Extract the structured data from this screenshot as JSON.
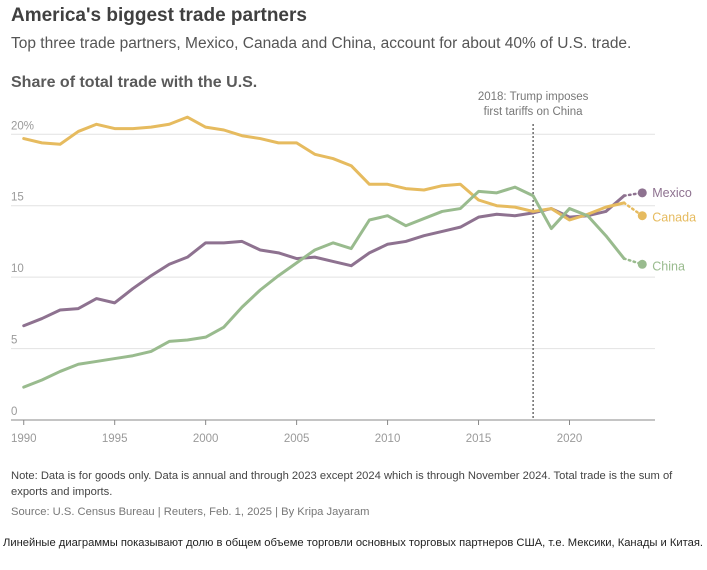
{
  "header": {
    "title": "America's biggest trade partners",
    "subtitle": "Top three trade partners, Mexico, Canada and China, account for about 40% of U.S. trade."
  },
  "chart_data": {
    "type": "line",
    "title": "Share of total trade with the U.S.",
    "xlabel": "",
    "ylabel": "",
    "x": [
      1990,
      1991,
      1992,
      1993,
      1994,
      1995,
      1996,
      1997,
      1998,
      1999,
      2000,
      2001,
      2002,
      2003,
      2004,
      2005,
      2006,
      2007,
      2008,
      2009,
      2010,
      2011,
      2012,
      2013,
      2014,
      2015,
      2016,
      2017,
      2018,
      2019,
      2020,
      2021,
      2022,
      2023
    ],
    "xlim": [
      1989.3,
      2024.7
    ],
    "ylim": [
      0,
      21
    ],
    "x_ticks": [
      "1990",
      "1995",
      "2000",
      "2005",
      "2010",
      "2015",
      "2020"
    ],
    "x_tick_values": [
      1990,
      1995,
      2000,
      2005,
      2010,
      2015,
      2020
    ],
    "y_ticks": [
      "0",
      "5",
      "10",
      "15",
      "20%"
    ],
    "y_tick_values": [
      0,
      5,
      10,
      15,
      20
    ],
    "series": [
      {
        "name": "Mexico",
        "color": "#8e7290",
        "values": [
          6.6,
          7.1,
          7.7,
          7.8,
          8.5,
          8.2,
          9.2,
          10.1,
          10.9,
          11.4,
          12.4,
          12.4,
          12.5,
          11.9,
          11.7,
          11.3,
          11.4,
          11.1,
          10.8,
          11.7,
          12.3,
          12.5,
          12.9,
          13.2,
          13.5,
          14.2,
          14.4,
          14.3,
          14.5,
          14.8,
          14.2,
          14.3,
          14.6,
          15.7
        ],
        "end_year": 2024,
        "end_value": 15.9
      },
      {
        "name": "Canada",
        "color": "#e6bb5f",
        "values": [
          19.7,
          19.4,
          19.3,
          20.2,
          20.7,
          20.4,
          20.4,
          20.5,
          20.7,
          21.2,
          20.5,
          20.3,
          19.9,
          19.7,
          19.4,
          19.4,
          18.6,
          18.3,
          17.8,
          16.5,
          16.5,
          16.2,
          16.1,
          16.4,
          16.5,
          15.4,
          15.0,
          14.9,
          14.6,
          14.8,
          14.0,
          14.4,
          14.9,
          15.2
        ],
        "end_year": 2024,
        "end_value": 14.3
      },
      {
        "name": "China",
        "color": "#99bb8e",
        "values": [
          2.3,
          2.8,
          3.4,
          3.9,
          4.1,
          4.3,
          4.5,
          4.8,
          5.5,
          5.6,
          5.8,
          6.5,
          7.9,
          9.1,
          10.1,
          11.0,
          11.9,
          12.4,
          12.0,
          14.0,
          14.3,
          13.6,
          14.1,
          14.6,
          14.8,
          16.0,
          15.9,
          16.3,
          15.7,
          13.4,
          14.8,
          14.3,
          12.9,
          11.3
        ],
        "end_year": 2024,
        "end_value": 10.9
      }
    ],
    "annotations": [
      {
        "x": 2018,
        "line1": "2018: Trump imposes",
        "line2": "first tariffs on China"
      }
    ]
  },
  "footer": {
    "note": "Note: Data is for goods only. Data is annual and through 2023 except 2024 which is through November 2024. Total trade is the sum of exports and imports.",
    "source": "Source: U.S. Census Bureau | Reuters, Feb. 1, 2025 | By Kripa Jayaram",
    "caption": "Линейные диаграммы показывают долю в общем объеме торговли основных торговых партнеров США, т.е. Мексики, Канады и Китая."
  }
}
